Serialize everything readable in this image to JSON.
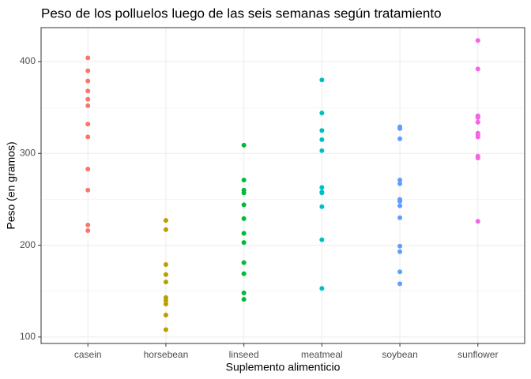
{
  "chart_data": {
    "type": "strip",
    "title": "Peso de los polluelos luego de las seis semanas según tratamiento",
    "x_label": "Suplemento alimenticio",
    "y_label": "Peso (en gramos)",
    "categories": [
      "casein",
      "horsebean",
      "linseed",
      "meatmeal",
      "soybean",
      "sunflower"
    ],
    "colors": [
      "#F8766D",
      "#B79F00",
      "#00BA38",
      "#00BFC4",
      "#619CFF",
      "#F564E3"
    ],
    "values": [
      [
        368,
        390,
        379,
        260,
        404,
        318,
        352,
        359,
        216,
        222,
        283,
        332
      ],
      [
        179,
        160,
        136,
        227,
        217,
        168,
        108,
        124,
        143,
        140
      ],
      [
        309,
        229,
        181,
        141,
        260,
        203,
        148,
        169,
        213,
        257,
        244,
        271
      ],
      [
        325,
        257,
        303,
        315,
        380,
        153,
        263,
        242,
        206,
        344,
        258
      ],
      [
        243,
        230,
        248,
        327,
        329,
        250,
        193,
        271,
        316,
        267,
        199,
        171,
        158,
        248
      ],
      [
        423,
        340,
        392,
        339,
        341,
        226,
        320,
        295,
        334,
        322,
        297,
        318
      ]
    ],
    "ylim": [
      93,
      437
    ],
    "yticks": [
      100,
      200,
      300,
      400
    ],
    "y_minor_ticks": [
      150,
      250,
      350
    ],
    "grid": true
  }
}
